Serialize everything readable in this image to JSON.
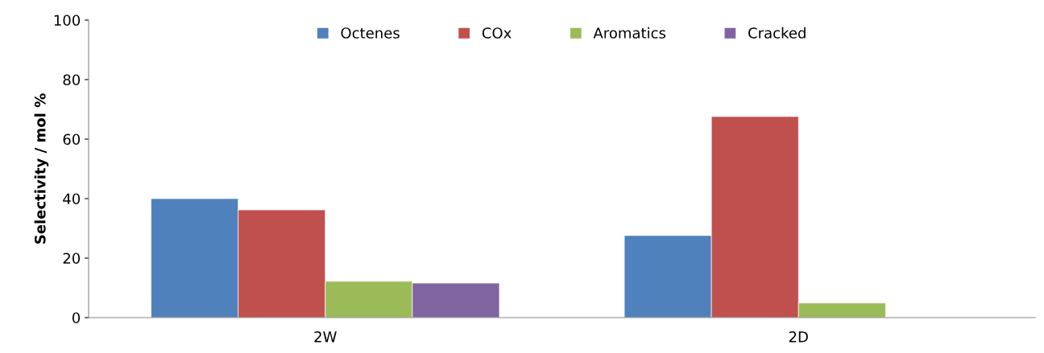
{
  "chart_data": {
    "type": "bar",
    "ylabel": "Selectivity / mol %",
    "categories": [
      "2W",
      "2D"
    ],
    "series": [
      {
        "name": "Octenes",
        "color": "#4f81bd",
        "values": [
          40.0,
          27.6
        ]
      },
      {
        "name": "COx",
        "color": "#c0504d",
        "values": [
          36.2,
          67.6
        ]
      },
      {
        "name": "Aromatics",
        "color": "#9bbb59",
        "values": [
          12.2,
          4.9
        ]
      },
      {
        "name": "Cracked",
        "color": "#8064a2",
        "values": [
          11.6,
          null
        ]
      }
    ],
    "ylim": [
      0,
      100
    ],
    "yticks": [
      0,
      20,
      40,
      60,
      80,
      100
    ],
    "grid": false,
    "legend": "top"
  }
}
